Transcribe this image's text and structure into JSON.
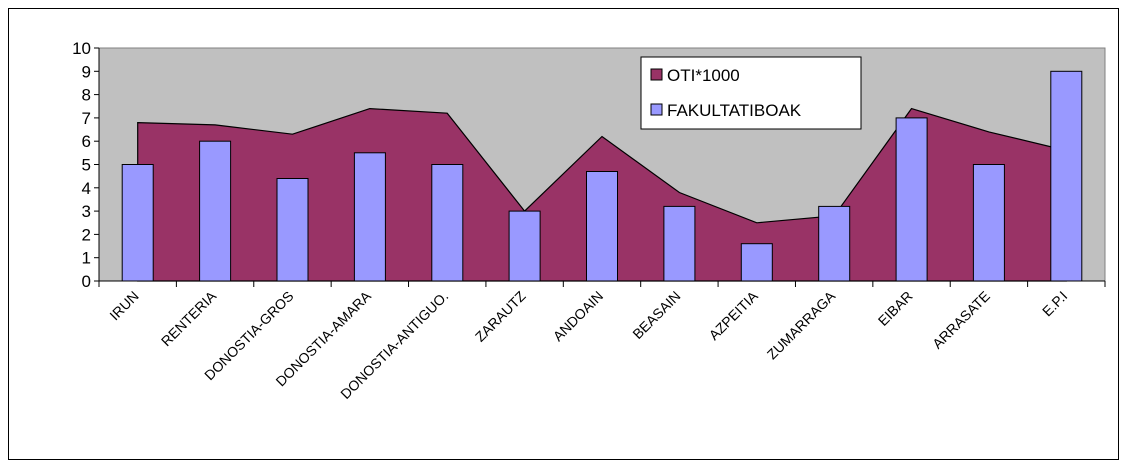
{
  "chart_data": {
    "type": "bar",
    "categories": [
      "IRUN",
      "RENTERIA",
      "DONOSTIA-GROS",
      "DONOSTIA-AMARA",
      "DONOSTIA-ANTIGUO.",
      "ZARAUTZ",
      "ANDOAIN",
      "BEASAIN",
      "AZPEITIA",
      "ZUMARRAGA",
      "EIBAR",
      "ARRASATE",
      "E.P.I"
    ],
    "series": [
      {
        "name": "OTI*1000",
        "kind": "area",
        "color": "#993366",
        "values": [
          6.8,
          6.7,
          6.3,
          7.4,
          7.2,
          3.0,
          6.2,
          3.8,
          2.5,
          2.8,
          7.4,
          6.4,
          5.6
        ]
      },
      {
        "name": "FAKULTATIBOAK",
        "kind": "bar",
        "color": "#9999FF",
        "values": [
          5.0,
          6.0,
          4.4,
          5.5,
          5.0,
          3.0,
          4.7,
          3.2,
          1.6,
          3.2,
          7.0,
          5.0,
          9.0
        ]
      }
    ],
    "ylim": [
      0,
      10
    ],
    "yticks": [
      "0",
      "1",
      "2",
      "3",
      "4",
      "5",
      "6",
      "7",
      "8",
      "9",
      "10"
    ],
    "plot_background": "#C0C0C0",
    "legend_position": "top-right",
    "title": "",
    "xlabel": "",
    "ylabel": ""
  }
}
